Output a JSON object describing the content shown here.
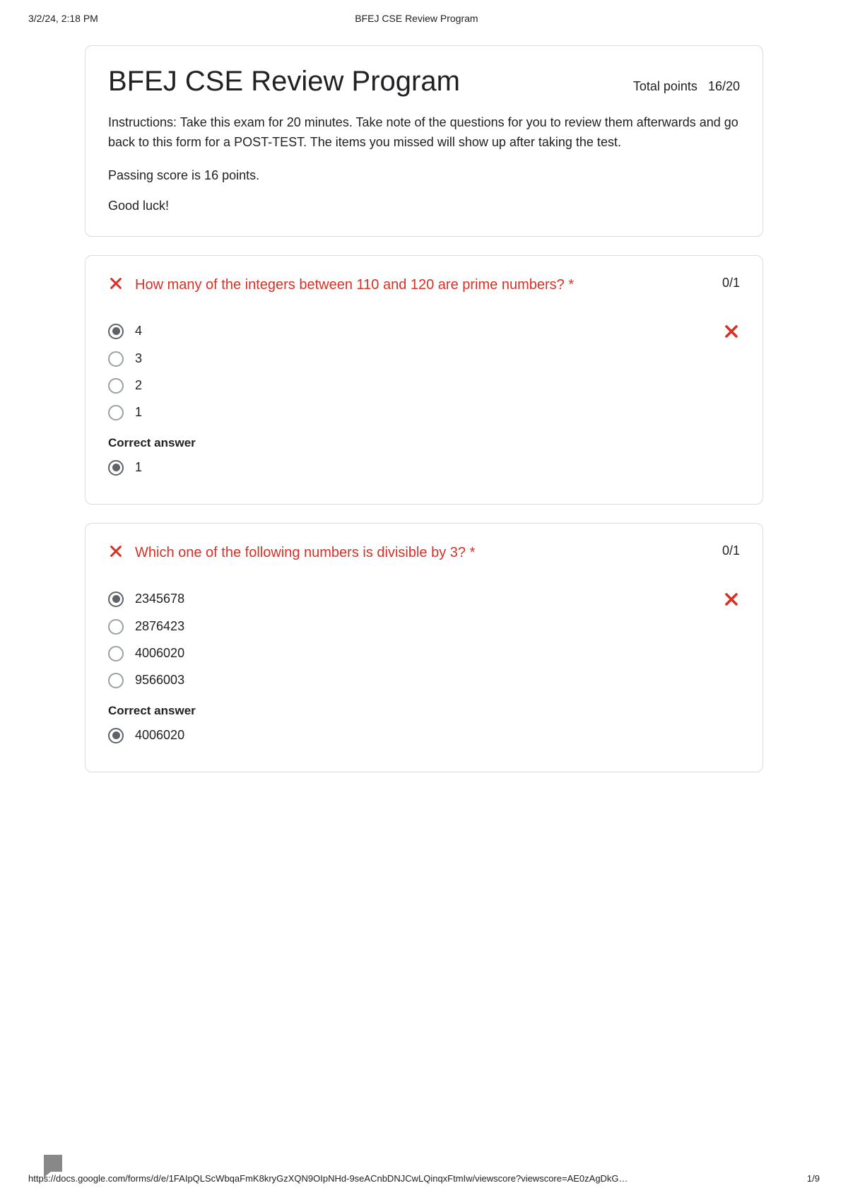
{
  "print_header": {
    "datetime": "3/2/24, 2:18 PM",
    "title": "BFEJ CSE Review Program"
  },
  "form": {
    "title": "BFEJ CSE Review Program",
    "total_points_label": "Total points",
    "total_points_value": "16/20",
    "instructions": "Instructions: Take this exam for 20 minutes. Take note of the questions for you to review them afterwards and go back to this form for a POST-TEST. The items you missed will show up after taking the test.",
    "passing_text": "Passing score is 16 points.",
    "good_luck": "Good luck!"
  },
  "questions": [
    {
      "status": "incorrect",
      "text": "How many of the integers between 110 and 120 are prime numbers? *",
      "score": "0/1",
      "options": [
        "4",
        "3",
        "2",
        "1"
      ],
      "selected_index": 0,
      "correct_label": "Correct answer",
      "correct_answer": "1"
    },
    {
      "status": "incorrect",
      "text": "Which one of the following numbers is divisible by 3? *",
      "score": "0/1",
      "options": [
        "2345678",
        "2876423",
        "4006020",
        "9566003"
      ],
      "selected_index": 0,
      "correct_label": "Correct answer",
      "correct_answer": "4006020"
    }
  ],
  "footer": {
    "url": "https://docs.google.com/forms/d/e/1FAIpQLScWbqaFmK8kryGzXQN9OIpNHd-9seACnbDNJCwLQinqxFtmIw/viewscore?viewscore=AE0zAgDkG…",
    "page": "1/9"
  },
  "colors": {
    "error": "#d93025",
    "border": "#dadce0",
    "text": "#202124",
    "radio_border": "#9aa0a6",
    "radio_selected": "#5f6368"
  }
}
